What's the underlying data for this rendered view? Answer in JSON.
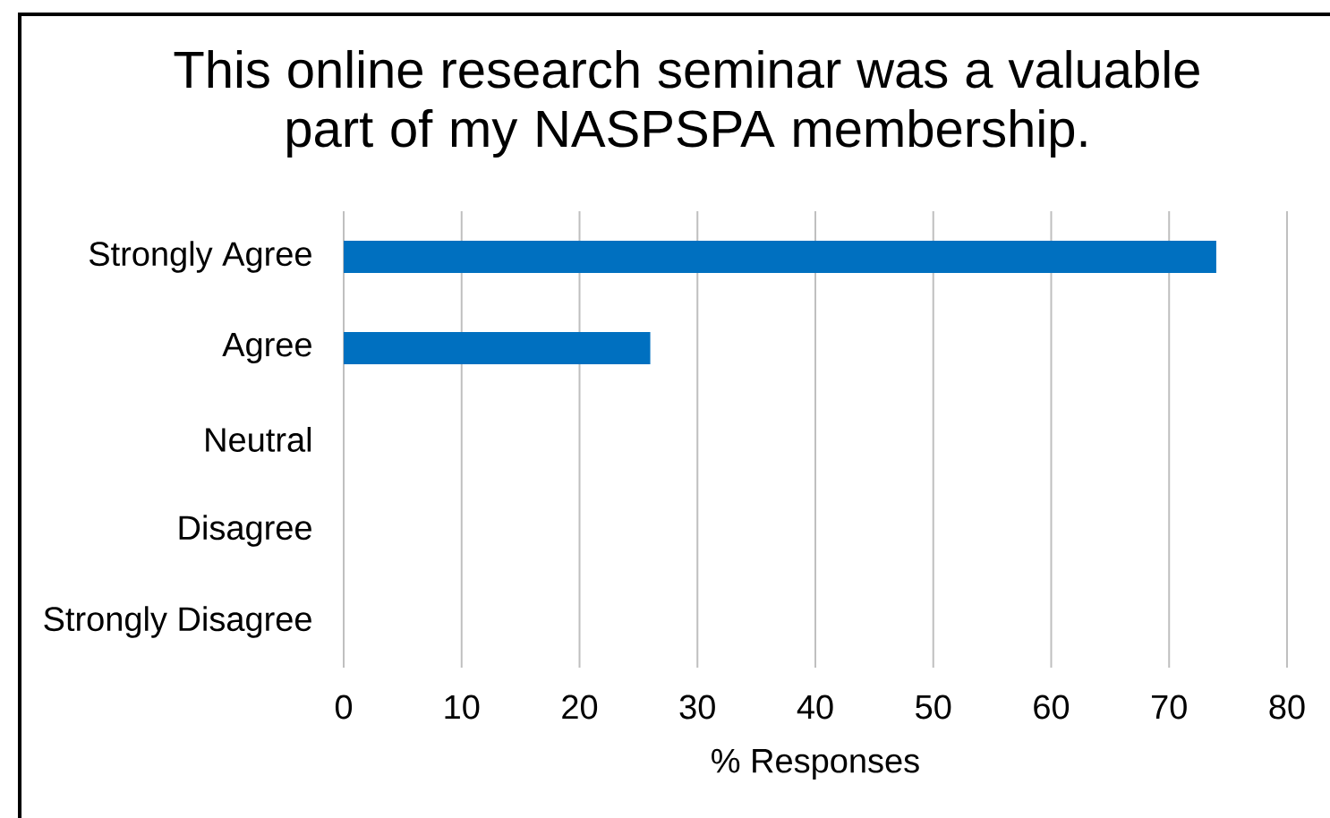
{
  "chart_data": {
    "type": "bar",
    "orientation": "horizontal",
    "title": "This online research seminar was a valuable part of my NASPSPA membership.",
    "xlabel": "% Responses",
    "categories": [
      "Strongly Agree",
      "Agree",
      "Neutral",
      "Disagree",
      "Strongly Disagree"
    ],
    "values": [
      74,
      26,
      0,
      0,
      0
    ],
    "color": "#0070c0",
    "xlim": [
      0,
      80
    ],
    "xticks": [
      0,
      10,
      20,
      30,
      40,
      50,
      60,
      70,
      80
    ],
    "grid": "x"
  }
}
